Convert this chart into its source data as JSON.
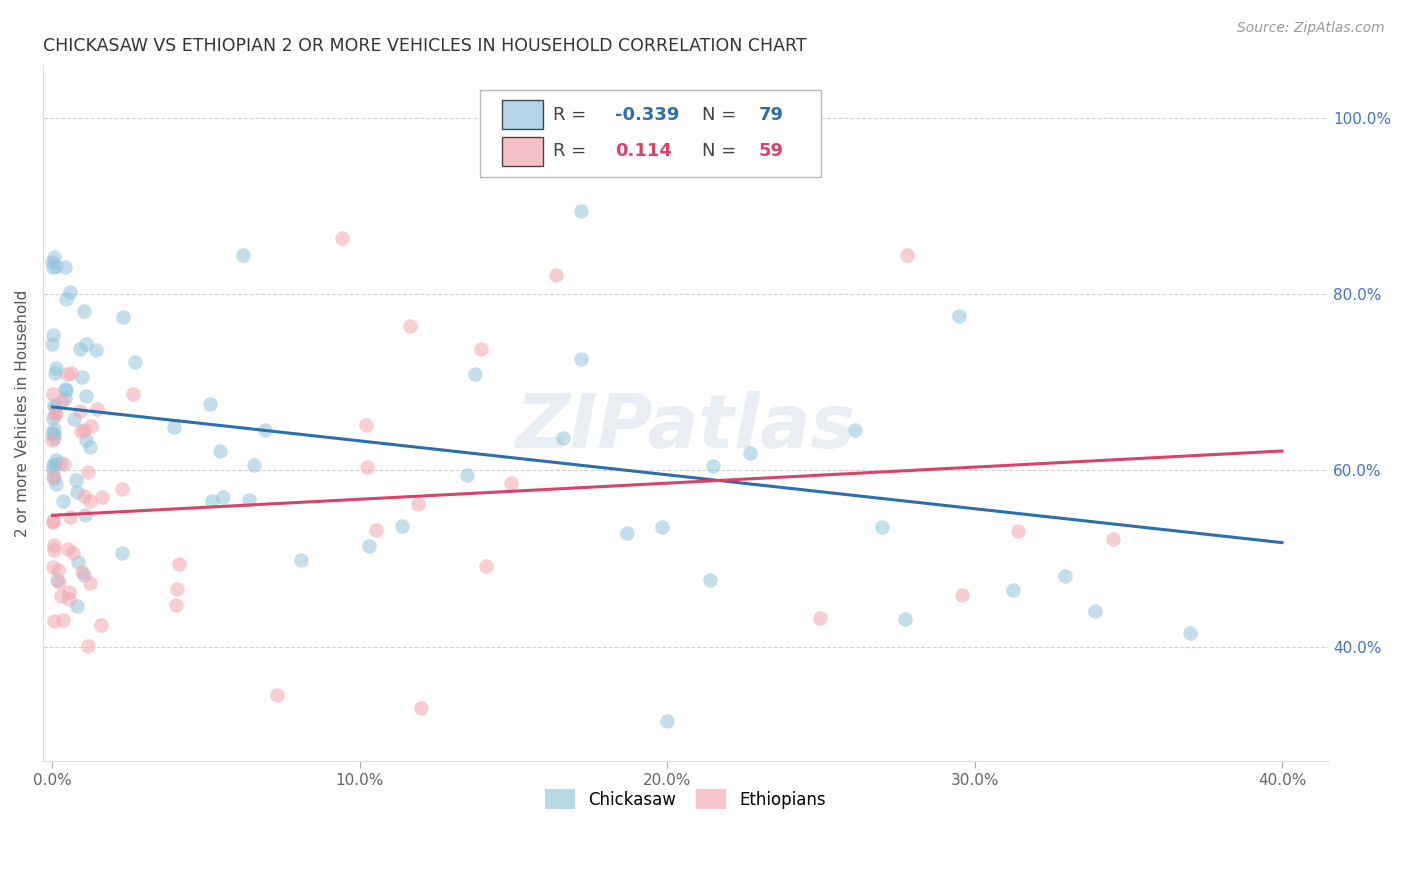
{
  "title": "CHICKASAW VS ETHIOPIAN 2 OR MORE VEHICLES IN HOUSEHOLD CORRELATION CHART",
  "source": "Source: ZipAtlas.com",
  "ylabel": "2 or more Vehicles in Household",
  "chickasaw_color": "#92c5de",
  "ethiopian_color": "#f4a6b0",
  "trendline_blue": "#2c6fad",
  "trendline_pink": "#d9436a",
  "chickasaw_R": -0.339,
  "chickasaw_N": 79,
  "ethiopian_R": 0.114,
  "ethiopian_N": 59,
  "legend_label_chickasaw": "Chickasaw",
  "legend_label_ethiopian": "Ethiopians",
  "watermark": "ZIPatlas",
  "background_color": "#ffffff",
  "grid_color": "#cccccc",
  "xlim_low": -0.003,
  "xlim_high": 0.415,
  "ylim_low": 0.27,
  "ylim_high": 1.06,
  "x_tick_positions": [
    0.0,
    0.1,
    0.2,
    0.3,
    0.4
  ],
  "x_tick_labels": [
    "0.0%",
    "10.0%",
    "20.0%",
    "30.0%",
    "40.0%"
  ],
  "y_tick_positions": [
    0.4,
    0.6,
    0.8,
    1.0
  ],
  "y_tick_labels": [
    "40.0%",
    "60.0%",
    "80.0%",
    "100.0%"
  ],
  "trendline_blue_y0": 0.672,
  "trendline_blue_y1": 0.518,
  "trendline_pink_y0": 0.549,
  "trendline_pink_y1": 0.622
}
